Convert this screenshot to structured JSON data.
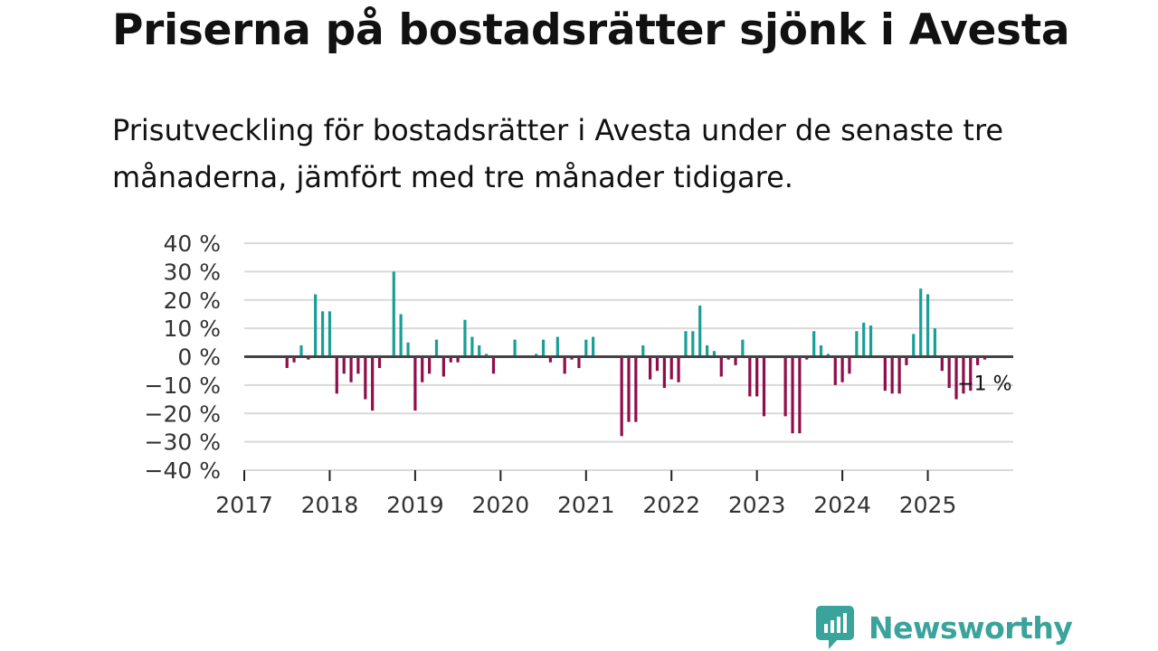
{
  "title": "Priserna på bostadsrätter sjönk i Avesta",
  "subtitle": "Prisutveckling för bostadsrätter i Avesta under de senaste tre månaderna, jämfört med tre månader tidigare.",
  "brand": {
    "name": "Newsworthy",
    "icon": "newsworthy-logo-icon",
    "color": "#3aa39b"
  },
  "colors": {
    "positive": "#1a9e96",
    "negative": "#8f0d4a",
    "grid": "#d9d9d9",
    "zero": "#444444"
  },
  "chart_data": {
    "type": "bar",
    "title": "Priserna på bostadsrätter sjönk i Avesta",
    "xlabel": "",
    "ylabel": "",
    "ylim": [
      -40,
      40
    ],
    "y_ticks": [
      40,
      30,
      20,
      10,
      0,
      -10,
      -20,
      -30,
      -40
    ],
    "y_tick_labels": [
      "40 %",
      "30 %",
      "20 %",
      "10 %",
      "0 %",
      "−10 %",
      "−20 %",
      "−30 %",
      "−40 %"
    ],
    "x_tick_labels": [
      "2017",
      "2018",
      "2019",
      "2020",
      "2021",
      "2022",
      "2023",
      "2024",
      "2025"
    ],
    "x_range": [
      2017.0,
      2026.0
    ],
    "grid": true,
    "last_value_label": "−1 %",
    "series": [
      {
        "name": "Prisutveckling",
        "points": [
          {
            "t": 2017.5,
            "v": -4
          },
          {
            "t": 2017.583,
            "v": -2
          },
          {
            "t": 2017.667,
            "v": 4
          },
          {
            "t": 2017.75,
            "v": -1
          },
          {
            "t": 2017.833,
            "v": 22
          },
          {
            "t": 2017.917,
            "v": 16
          },
          {
            "t": 2018.0,
            "v": 16
          },
          {
            "t": 2018.083,
            "v": -13
          },
          {
            "t": 2018.167,
            "v": -6
          },
          {
            "t": 2018.25,
            "v": -9
          },
          {
            "t": 2018.333,
            "v": -6
          },
          {
            "t": 2018.417,
            "v": -15
          },
          {
            "t": 2018.5,
            "v": -19
          },
          {
            "t": 2018.583,
            "v": -4
          },
          {
            "t": 2018.75,
            "v": 30
          },
          {
            "t": 2018.833,
            "v": 15
          },
          {
            "t": 2018.917,
            "v": 5
          },
          {
            "t": 2019.0,
            "v": -19
          },
          {
            "t": 2019.083,
            "v": -9
          },
          {
            "t": 2019.167,
            "v": -6
          },
          {
            "t": 2019.25,
            "v": 6
          },
          {
            "t": 2019.333,
            "v": -7
          },
          {
            "t": 2019.417,
            "v": -2
          },
          {
            "t": 2019.5,
            "v": -2
          },
          {
            "t": 2019.583,
            "v": 13
          },
          {
            "t": 2019.667,
            "v": 7
          },
          {
            "t": 2019.75,
            "v": 4
          },
          {
            "t": 2019.833,
            "v": 1
          },
          {
            "t": 2019.917,
            "v": -6
          },
          {
            "t": 2020.167,
            "v": 6
          },
          {
            "t": 2020.417,
            "v": 1
          },
          {
            "t": 2020.5,
            "v": 6
          },
          {
            "t": 2020.583,
            "v": -2
          },
          {
            "t": 2020.667,
            "v": 7
          },
          {
            "t": 2020.75,
            "v": -6
          },
          {
            "t": 2020.833,
            "v": -1
          },
          {
            "t": 2020.917,
            "v": -4
          },
          {
            "t": 2021.0,
            "v": 6
          },
          {
            "t": 2021.083,
            "v": 7
          },
          {
            "t": 2021.417,
            "v": -28
          },
          {
            "t": 2021.5,
            "v": -23
          },
          {
            "t": 2021.583,
            "v": -23
          },
          {
            "t": 2021.667,
            "v": 4
          },
          {
            "t": 2021.75,
            "v": -8
          },
          {
            "t": 2021.833,
            "v": -5
          },
          {
            "t": 2021.917,
            "v": -11
          },
          {
            "t": 2022.0,
            "v": -8
          },
          {
            "t": 2022.083,
            "v": -9
          },
          {
            "t": 2022.167,
            "v": 9
          },
          {
            "t": 2022.25,
            "v": 9
          },
          {
            "t": 2022.333,
            "v": 18
          },
          {
            "t": 2022.417,
            "v": 4
          },
          {
            "t": 2022.5,
            "v": 2
          },
          {
            "t": 2022.583,
            "v": -7
          },
          {
            "t": 2022.667,
            "v": -1
          },
          {
            "t": 2022.75,
            "v": -3
          },
          {
            "t": 2022.833,
            "v": 6
          },
          {
            "t": 2022.917,
            "v": -14
          },
          {
            "t": 2023.0,
            "v": -14
          },
          {
            "t": 2023.083,
            "v": -21
          },
          {
            "t": 2023.333,
            "v": -21
          },
          {
            "t": 2023.417,
            "v": -27
          },
          {
            "t": 2023.5,
            "v": -27
          },
          {
            "t": 2023.583,
            "v": -1
          },
          {
            "t": 2023.667,
            "v": 9
          },
          {
            "t": 2023.75,
            "v": 4
          },
          {
            "t": 2023.833,
            "v": 1
          },
          {
            "t": 2023.917,
            "v": -10
          },
          {
            "t": 2024.0,
            "v": -9
          },
          {
            "t": 2024.083,
            "v": -6
          },
          {
            "t": 2024.167,
            "v": 9
          },
          {
            "t": 2024.25,
            "v": 12
          },
          {
            "t": 2024.333,
            "v": 11
          },
          {
            "t": 2024.5,
            "v": -12
          },
          {
            "t": 2024.583,
            "v": -13
          },
          {
            "t": 2024.667,
            "v": -13
          },
          {
            "t": 2024.75,
            "v": -3
          },
          {
            "t": 2024.833,
            "v": 8
          },
          {
            "t": 2024.917,
            "v": 24
          },
          {
            "t": 2025.0,
            "v": 22
          },
          {
            "t": 2025.083,
            "v": 10
          },
          {
            "t": 2025.167,
            "v": -5
          },
          {
            "t": 2025.25,
            "v": -11
          },
          {
            "t": 2025.333,
            "v": -15
          },
          {
            "t": 2025.417,
            "v": -13
          },
          {
            "t": 2025.5,
            "v": -12
          },
          {
            "t": 2025.583,
            "v": -3
          },
          {
            "t": 2025.667,
            "v": -1
          }
        ]
      }
    ]
  }
}
